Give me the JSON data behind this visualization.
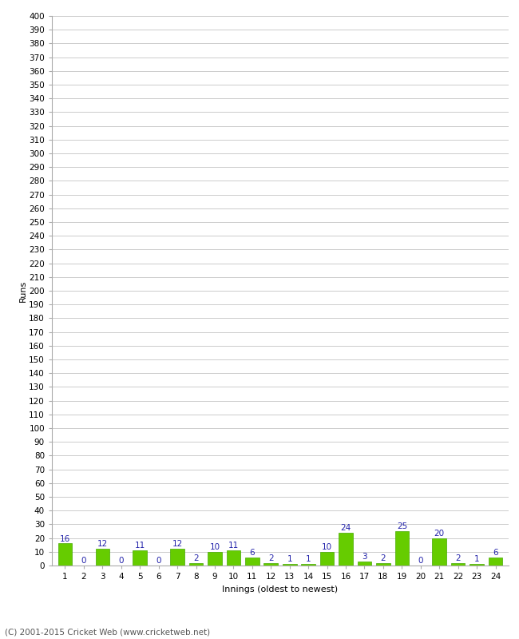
{
  "innings": [
    1,
    2,
    3,
    4,
    5,
    6,
    7,
    8,
    9,
    10,
    11,
    12,
    13,
    14,
    15,
    16,
    17,
    18,
    19,
    20,
    21,
    22,
    23,
    24
  ],
  "runs": [
    16,
    0,
    12,
    0,
    11,
    0,
    12,
    2,
    10,
    11,
    6,
    2,
    1,
    1,
    10,
    24,
    3,
    2,
    25,
    0,
    20,
    2,
    1,
    6
  ],
  "bar_color": "#66cc00",
  "bar_edge_color": "#44aa00",
  "label_color": "#2222aa",
  "ylabel": "Runs",
  "xlabel": "Innings (oldest to newest)",
  "ylim": [
    0,
    400
  ],
  "yticks": [
    0,
    10,
    20,
    30,
    40,
    50,
    60,
    70,
    80,
    90,
    100,
    110,
    120,
    130,
    140,
    150,
    160,
    170,
    180,
    190,
    200,
    210,
    220,
    230,
    240,
    250,
    260,
    270,
    280,
    290,
    300,
    310,
    320,
    330,
    340,
    350,
    360,
    370,
    380,
    390,
    400
  ],
  "background_color": "#ffffff",
  "grid_color": "#cccccc",
  "footer": "(C) 2001-2015 Cricket Web (www.cricketweb.net)",
  "label_fontsize": 7.5,
  "axis_label_fontsize": 8,
  "tick_fontsize": 7.5,
  "footer_fontsize": 7.5,
  "fig_width": 6.5,
  "fig_height": 8.0,
  "dpi": 100
}
